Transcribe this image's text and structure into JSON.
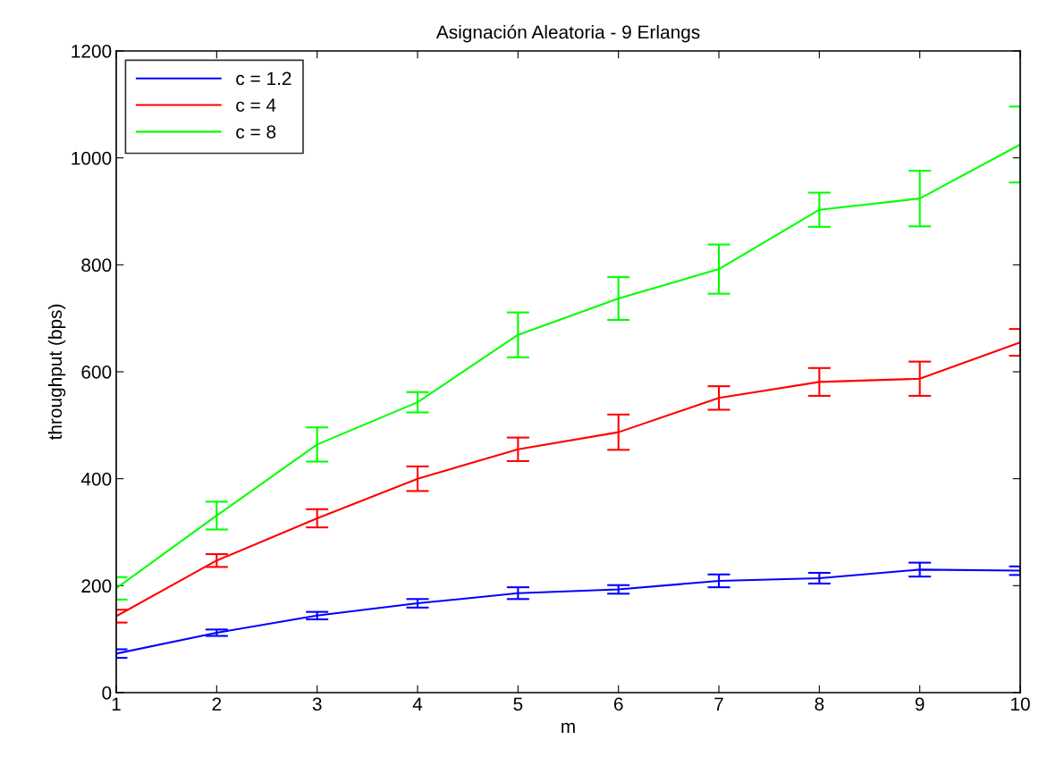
{
  "chart_data": {
    "type": "line",
    "title": "Asignación Aleatoria - 9 Erlangs",
    "xlabel": "m",
    "ylabel": "throughput (bps)",
    "x": [
      1,
      2,
      3,
      4,
      5,
      6,
      7,
      8,
      9,
      10
    ],
    "series": [
      {
        "name": "c = 1.2",
        "color": "#0000ff",
        "values": [
          73,
          112,
          144,
          167,
          186,
          193,
          209,
          214,
          230,
          228
        ],
        "errors": [
          8,
          6,
          7,
          8,
          11,
          8,
          12,
          10,
          13,
          8
        ]
      },
      {
        "name": "c = 4",
        "color": "#ff0000",
        "values": [
          143,
          247,
          326,
          400,
          455,
          487,
          551,
          581,
          587,
          655
        ],
        "errors": [
          12,
          12,
          17,
          23,
          22,
          33,
          22,
          26,
          32,
          25
        ]
      },
      {
        "name": "c = 8",
        "color": "#00ff00",
        "values": [
          195,
          331,
          464,
          543,
          669,
          737,
          792,
          903,
          924,
          1025
        ],
        "errors": [
          21,
          26,
          32,
          19,
          42,
          40,
          46,
          32,
          52,
          71
        ]
      }
    ],
    "xlim": [
      1,
      10
    ],
    "xticks": [
      1,
      2,
      3,
      4,
      5,
      6,
      7,
      8,
      9,
      10
    ],
    "ylim": [
      0,
      1200
    ],
    "yticks": [
      0,
      200,
      400,
      600,
      800,
      1000,
      1200
    ],
    "grid": false,
    "legend": "top left",
    "marker": "none",
    "line_style": "solid"
  }
}
